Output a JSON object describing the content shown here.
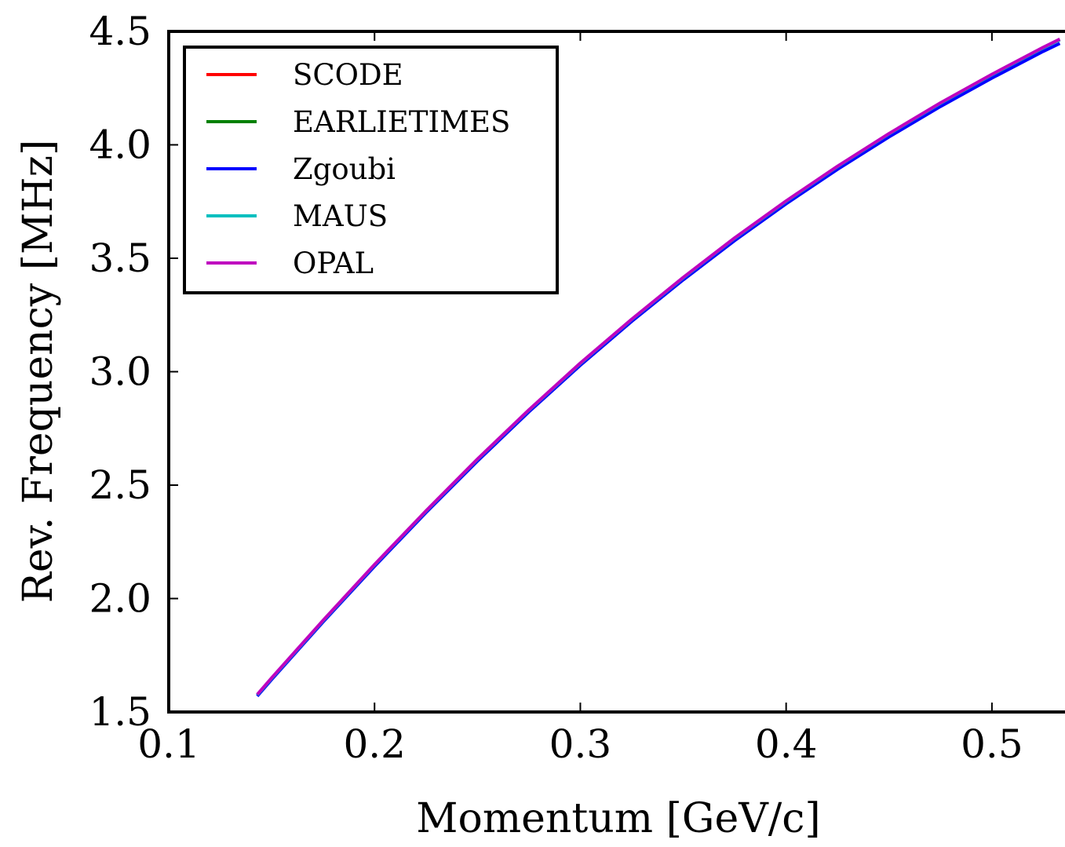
{
  "chart_data": {
    "type": "line",
    "title": "",
    "xlabel": "Momentum [GeV/c]",
    "ylabel": "Rev. Frequency [MHz]",
    "xlim": [
      0.1,
      0.55
    ],
    "ylim": [
      1.5,
      4.5
    ],
    "xticks": [
      0.1,
      0.2,
      0.3,
      0.4,
      0.5
    ],
    "xtick_labels": [
      "0.1",
      "0.2",
      "0.3",
      "0.4",
      "0.5"
    ],
    "yticks": [
      1.5,
      2.0,
      2.5,
      3.0,
      3.5,
      4.0,
      4.5
    ],
    "ytick_labels": [
      "1.5",
      "2.0",
      "2.5",
      "3.0",
      "3.5",
      "4.0",
      "4.5"
    ],
    "grid": false,
    "legend_position": "top-left",
    "x": [
      0.143,
      0.15,
      0.175,
      0.2,
      0.225,
      0.25,
      0.275,
      0.3,
      0.325,
      0.35,
      0.375,
      0.4,
      0.425,
      0.45,
      0.475,
      0.5,
      0.525,
      0.533
    ],
    "series": [
      {
        "name": "SCODE",
        "color": "#ff0000",
        "values": [
          1.575,
          1.648,
          1.902,
          2.148,
          2.385,
          2.613,
          2.83,
          3.036,
          3.23,
          3.414,
          3.588,
          3.751,
          3.904,
          4.048,
          4.183,
          4.309,
          4.428,
          4.464
        ]
      },
      {
        "name": "EARLIETIMES",
        "color": "#008000",
        "values": [
          1.575,
          1.648,
          1.902,
          2.148,
          2.385,
          2.613,
          2.83,
          3.036,
          3.23,
          3.414,
          3.588,
          3.751,
          3.904,
          4.048,
          4.183,
          4.309,
          4.428,
          4.464
        ]
      },
      {
        "name": "Zgoubi",
        "color": "#0000ff",
        "values": [
          1.57,
          1.643,
          1.897,
          2.142,
          2.379,
          2.606,
          2.823,
          3.028,
          3.222,
          3.405,
          3.578,
          3.74,
          3.892,
          4.035,
          4.169,
          4.294,
          4.412,
          4.447
        ]
      },
      {
        "name": "MAUS",
        "color": "#00bfbf",
        "values": [
          1.575,
          1.648,
          1.902,
          2.148,
          2.385,
          2.613,
          2.83,
          3.036,
          3.23,
          3.414,
          3.588,
          3.751,
          3.904,
          4.048,
          4.183,
          4.309,
          4.428,
          4.464
        ]
      },
      {
        "name": "OPAL",
        "color": "#bf00bf",
        "values": [
          1.577,
          1.65,
          1.904,
          2.15,
          2.387,
          2.615,
          2.832,
          3.038,
          3.232,
          3.416,
          3.59,
          3.753,
          3.906,
          4.05,
          4.185,
          4.311,
          4.43,
          4.466
        ]
      }
    ]
  }
}
